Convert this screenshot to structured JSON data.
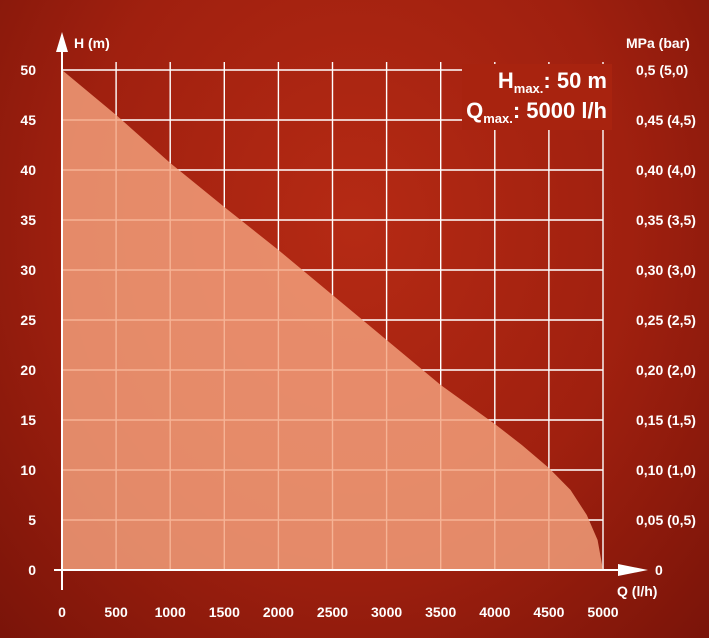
{
  "chart_data": {
    "type": "area",
    "x_axis": {
      "label": "Q (l/h)",
      "ticks": [
        0,
        500,
        1000,
        1500,
        2000,
        2500,
        3000,
        3500,
        4000,
        4500,
        5000
      ],
      "range": [
        0,
        5000
      ]
    },
    "y_axis_left": {
      "label": "H (m)",
      "ticks": [
        0,
        5,
        10,
        15,
        20,
        25,
        30,
        35,
        40,
        45,
        50
      ],
      "range": [
        0,
        50
      ]
    },
    "y_axis_right": {
      "label": "MPa (bar)",
      "tick_labels": [
        "0",
        "0,05 (0,5)",
        "0,10 (1,0)",
        "0,15 (1,5)",
        "0,20 (2,0)",
        "0,25 (2,5)",
        "0,30 (3,0)",
        "0,35 (3,5)",
        "0,40 (4,0)",
        "0,45 (4,5)",
        "0,5 (5,0)"
      ]
    },
    "grid": true,
    "series": [
      {
        "x": [
          0,
          500,
          1000,
          1500,
          2000,
          2500,
          3000,
          3500,
          4000,
          4250,
          4500,
          4700,
          4850,
          4950,
          5000
        ],
        "y": [
          50,
          45.5,
          40.7,
          36.3,
          32,
          27.5,
          23,
          18.5,
          14.6,
          12.5,
          10.2,
          8,
          5.5,
          3,
          0
        ]
      }
    ],
    "annotations": {
      "hmax": {
        "symbol": "H",
        "sub": "max.",
        "value": ": 50 m"
      },
      "qmax": {
        "symbol": "Q",
        "sub": "max.",
        "value": ": 5000 l/h"
      }
    }
  },
  "colors": {
    "background": "#a0200f",
    "fill": "#f4a27e",
    "grid": "#ffffff",
    "text": "#ffffff"
  }
}
